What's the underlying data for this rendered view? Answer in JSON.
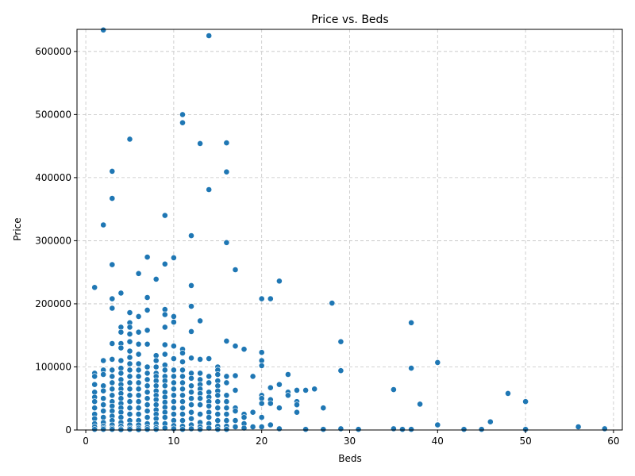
{
  "chart_data": {
    "type": "scatter",
    "title": "Price vs. Beds",
    "xlabel": "Beds",
    "ylabel": "Price",
    "xlim": [
      -1,
      61
    ],
    "ylim": [
      0,
      635000
    ],
    "xticks": [
      0,
      10,
      20,
      30,
      40,
      50,
      60
    ],
    "yticks": [
      0,
      100000,
      200000,
      300000,
      400000,
      500000,
      600000
    ],
    "grid": true,
    "point_color": "#1f77b4",
    "x": [
      1,
      1,
      1,
      1,
      1,
      1,
      1,
      1,
      1,
      1,
      1,
      1,
      1,
      2,
      2,
      2,
      2,
      2,
      2,
      2,
      2,
      2,
      2,
      2,
      2,
      2,
      2,
      2,
      3,
      3,
      3,
      3,
      3,
      3,
      3,
      3,
      3,
      3,
      3,
      3,
      3,
      3,
      3,
      3,
      3,
      3,
      3,
      3,
      4,
      4,
      4,
      4,
      4,
      4,
      4,
      4,
      4,
      4,
      4,
      4,
      4,
      4,
      4,
      4,
      4,
      4,
      4,
      4,
      4,
      5,
      5,
      5,
      5,
      5,
      5,
      5,
      5,
      5,
      5,
      5,
      5,
      5,
      5,
      5,
      5,
      5,
      5,
      5,
      5,
      5,
      6,
      6,
      6,
      6,
      6,
      6,
      6,
      6,
      6,
      6,
      6,
      6,
      6,
      6,
      6,
      6,
      6,
      6,
      7,
      7,
      7,
      7,
      7,
      7,
      7,
      7,
      7,
      7,
      7,
      7,
      7,
      7,
      7,
      7,
      7,
      8,
      8,
      8,
      8,
      8,
      8,
      8,
      8,
      8,
      8,
      8,
      8,
      8,
      8,
      8,
      8,
      8,
      8,
      9,
      9,
      9,
      9,
      9,
      9,
      9,
      9,
      9,
      9,
      9,
      9,
      9,
      9,
      9,
      9,
      9,
      9,
      9,
      9,
      10,
      10,
      10,
      10,
      10,
      10,
      10,
      10,
      10,
      10,
      10,
      10,
      10,
      10,
      10,
      10,
      11,
      11,
      11,
      11,
      11,
      11,
      11,
      11,
      11,
      11,
      11,
      11,
      11,
      11,
      11,
      11,
      12,
      12,
      12,
      12,
      12,
      12,
      12,
      12,
      12,
      12,
      12,
      12,
      12,
      12,
      12,
      13,
      13,
      13,
      13,
      13,
      13,
      13,
      13,
      13,
      13,
      13,
      13,
      13,
      13,
      14,
      14,
      14,
      14,
      14,
      14,
      14,
      14,
      14,
      14,
      14,
      14,
      14,
      15,
      15,
      15,
      15,
      15,
      15,
      15,
      15,
      15,
      15,
      15,
      15,
      15,
      16,
      16,
      16,
      16,
      16,
      16,
      16,
      16,
      16,
      16,
      16,
      16,
      16,
      17,
      17,
      17,
      17,
      17,
      17,
      17,
      17,
      18,
      18,
      18,
      18,
      18,
      19,
      19,
      19,
      20,
      20,
      20,
      20,
      20,
      20,
      20,
      20,
      20,
      21,
      21,
      21,
      21,
      21,
      22,
      22,
      22,
      22,
      23,
      23,
      23,
      24,
      24,
      24,
      24,
      25,
      25,
      26,
      27,
      27,
      28,
      29,
      29,
      29,
      31,
      35,
      35,
      36,
      37,
      37,
      37,
      38,
      40,
      40,
      43,
      45,
      46,
      48,
      50,
      50,
      56,
      59
    ],
    "y": [
      226000,
      90000,
      85000,
      72000,
      60000,
      52000,
      45000,
      35000,
      25000,
      18000,
      10000,
      5000,
      1000,
      634000,
      325000,
      110000,
      95000,
      88000,
      70000,
      62000,
      50000,
      40000,
      30000,
      20000,
      12000,
      6000,
      3000,
      1000,
      410000,
      367000,
      262000,
      208000,
      193000,
      137000,
      112000,
      95000,
      85000,
      75000,
      65000,
      55000,
      45000,
      38000,
      30000,
      22000,
      15000,
      8000,
      3000,
      1000,
      217000,
      163000,
      155000,
      137000,
      130000,
      110000,
      98000,
      90000,
      80000,
      72000,
      65000,
      58000,
      50000,
      42000,
      35000,
      28000,
      20000,
      12000,
      6000,
      2000,
      500,
      461000,
      186000,
      170000,
      163000,
      152000,
      140000,
      125000,
      115000,
      105000,
      95000,
      85000,
      75000,
      65000,
      55000,
      45000,
      35000,
      25000,
      15000,
      8000,
      3000,
      1000,
      248000,
      180000,
      155000,
      136000,
      120000,
      105000,
      95000,
      85000,
      75000,
      65000,
      55000,
      45000,
      35000,
      25000,
      15000,
      8000,
      3000,
      500,
      274000,
      210000,
      190000,
      158000,
      136000,
      100000,
      90000,
      80000,
      70000,
      60000,
      50000,
      40000,
      30000,
      20000,
      10000,
      4000,
      1000,
      239000,
      118000,
      110000,
      100000,
      90000,
      85000,
      78000,
      70000,
      62000,
      55000,
      48000,
      40000,
      32000,
      25000,
      18000,
      10000,
      4000,
      1000,
      340000,
      263000,
      191000,
      183000,
      163000,
      135000,
      120000,
      103000,
      95000,
      85000,
      78000,
      70000,
      60000,
      52000,
      44000,
      36000,
      28000,
      20000,
      10000,
      3000,
      273000,
      180000,
      171000,
      133000,
      113000,
      95000,
      85000,
      75000,
      65000,
      55000,
      45000,
      35000,
      25000,
      15000,
      7000,
      2000,
      500000,
      487000,
      128000,
      122000,
      108000,
      95000,
      85000,
      75000,
      65000,
      55000,
      45000,
      35000,
      25000,
      15000,
      6000,
      1000,
      308000,
      229000,
      196000,
      156000,
      114000,
      90000,
      82000,
      70000,
      60000,
      50000,
      40000,
      28000,
      18000,
      8000,
      2000,
      454000,
      173000,
      112000,
      90000,
      80000,
      72000,
      65000,
      58000,
      50000,
      40000,
      25000,
      12000,
      5000,
      1000,
      625000,
      381000,
      113000,
      85000,
      75000,
      60000,
      52000,
      45000,
      38000,
      28000,
      20000,
      10000,
      3000,
      100000,
      95000,
      88000,
      78000,
      70000,
      62000,
      55000,
      45000,
      35000,
      25000,
      15000,
      6000,
      1000,
      455000,
      409000,
      297000,
      141000,
      85000,
      75000,
      55000,
      45000,
      35000,
      25000,
      15000,
      6000,
      1000,
      254000,
      133000,
      86000,
      63000,
      35000,
      30000,
      15000,
      5000,
      128000,
      25000,
      20000,
      10000,
      3000,
      85000,
      28000,
      5000,
      208000,
      123000,
      110000,
      102000,
      55000,
      50000,
      42000,
      20000,
      5000,
      208000,
      67000,
      48000,
      42000,
      8000,
      236000,
      72000,
      35000,
      2000,
      88000,
      60000,
      55000,
      63000,
      45000,
      40000,
      28000,
      63000,
      1000,
      65000,
      35000,
      1000,
      201000,
      140000,
      94000,
      2000,
      1000,
      64000,
      2000,
      1000,
      170000,
      98000,
      1000,
      41000,
      107000,
      8000,
      1000,
      1000,
      13000,
      58000,
      45000,
      1000,
      5000,
      2000
    ]
  }
}
